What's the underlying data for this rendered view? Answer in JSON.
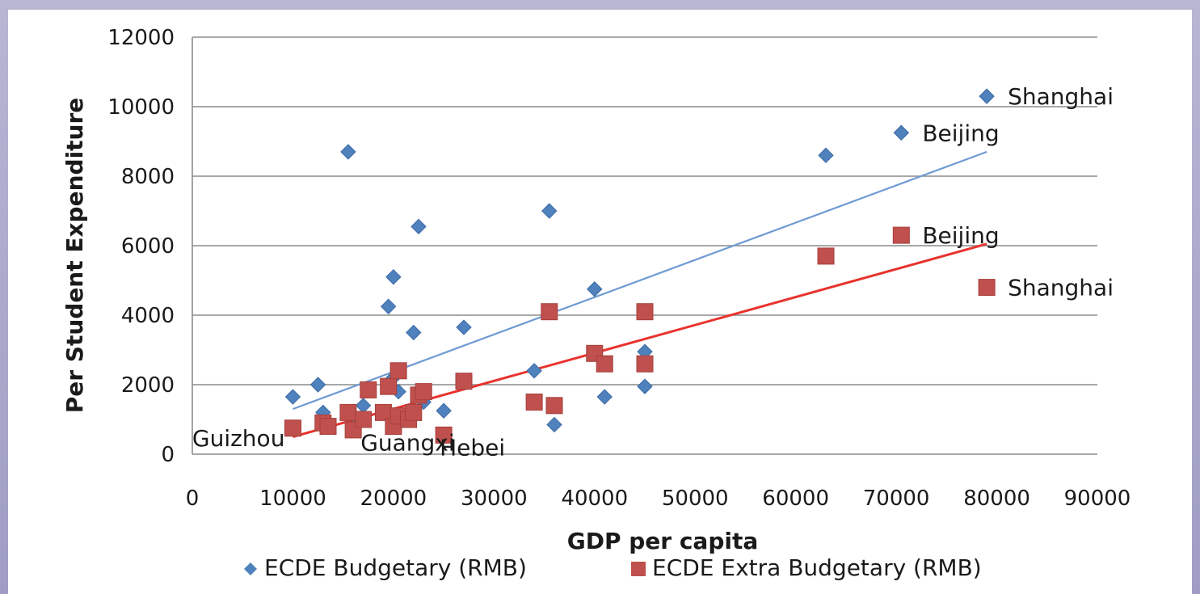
{
  "chart_data": {
    "type": "scatter",
    "title": "",
    "xlabel": "GDP per capita",
    "ylabel": "Per Student Expenditure",
    "xlim": [
      0,
      90000
    ],
    "ylim": [
      0,
      12000
    ],
    "x_ticks": [
      "0",
      "10000",
      "20000",
      "30000",
      "40000",
      "50000",
      "60000",
      "70000",
      "80000",
      "90000"
    ],
    "y_ticks": [
      "0",
      "2000",
      "4000",
      "6000",
      "8000",
      "10000",
      "12000"
    ],
    "grid": "horizontal",
    "legend_position": "bottom",
    "series": [
      {
        "name": "ECDE Budgetary (RMB)",
        "marker": "diamond",
        "color": "#4f81bd",
        "trend_color": "#6f9bd3",
        "trendline": [
          [
            10000,
            1300
          ],
          [
            79000,
            8700
          ]
        ],
        "points": [
          [
            10000,
            1650
          ],
          [
            12500,
            2000
          ],
          [
            13000,
            1200
          ],
          [
            15500,
            8700
          ],
          [
            16500,
            1000
          ],
          [
            17000,
            1400
          ],
          [
            19500,
            4250
          ],
          [
            20000,
            5100
          ],
          [
            20000,
            2200
          ],
          [
            20500,
            1800
          ],
          [
            22000,
            3500
          ],
          [
            22500,
            6550
          ],
          [
            23000,
            1500
          ],
          [
            25000,
            1250
          ],
          [
            27000,
            3650
          ],
          [
            34000,
            2400
          ],
          [
            35500,
            7000
          ],
          [
            36000,
            850
          ],
          [
            40000,
            4750
          ],
          [
            41000,
            1650
          ],
          [
            45000,
            2950
          ],
          [
            45000,
            1950
          ],
          [
            63000,
            8600
          ],
          [
            70500,
            9250
          ],
          [
            79000,
            10300
          ]
        ]
      },
      {
        "name": "ECDE Extra Budgetary (RMB)",
        "marker": "square",
        "color": "#c0504d",
        "trend_color": "#e8332e",
        "trendline": [
          [
            10000,
            500
          ],
          [
            79000,
            6050
          ]
        ],
        "points": [
          [
            10000,
            750
          ],
          [
            13000,
            900
          ],
          [
            13500,
            800
          ],
          [
            15500,
            1200
          ],
          [
            16000,
            700
          ],
          [
            17000,
            1000
          ],
          [
            17500,
            1850
          ],
          [
            19000,
            1200
          ],
          [
            19500,
            1950
          ],
          [
            20000,
            800
          ],
          [
            20500,
            1100
          ],
          [
            20500,
            2400
          ],
          [
            21500,
            1000
          ],
          [
            22000,
            1200
          ],
          [
            22500,
            1700
          ],
          [
            23000,
            1800
          ],
          [
            25000,
            550
          ],
          [
            27000,
            2100
          ],
          [
            34000,
            1500
          ],
          [
            35500,
            4100
          ],
          [
            36000,
            1400
          ],
          [
            40000,
            2900
          ],
          [
            41000,
            2600
          ],
          [
            45000,
            4100
          ],
          [
            45000,
            2600
          ],
          [
            63000,
            5700
          ],
          [
            70500,
            6300
          ],
          [
            79000,
            4800
          ]
        ]
      }
    ],
    "annotations": [
      {
        "text": "Shanghai",
        "series": 0,
        "x": 79000,
        "y": 10300,
        "anchor": "right"
      },
      {
        "text": "Beijing",
        "series": 0,
        "x": 70500,
        "y": 9250,
        "anchor": "right"
      },
      {
        "text": "Beijing",
        "series": 1,
        "x": 70500,
        "y": 6300,
        "anchor": "right"
      },
      {
        "text": "Shanghai",
        "series": 1,
        "x": 79000,
        "y": 4800,
        "anchor": "right"
      },
      {
        "text": "Guizhou",
        "series": 1,
        "x": 10000,
        "y": 750,
        "anchor": "below-left"
      },
      {
        "text": "Guangxi",
        "series": 1,
        "x": 19000,
        "y": 1200,
        "anchor": "below"
      },
      {
        "text": "Hebei",
        "series": 1,
        "x": 25000,
        "y": 550,
        "anchor": "below-right"
      }
    ]
  }
}
